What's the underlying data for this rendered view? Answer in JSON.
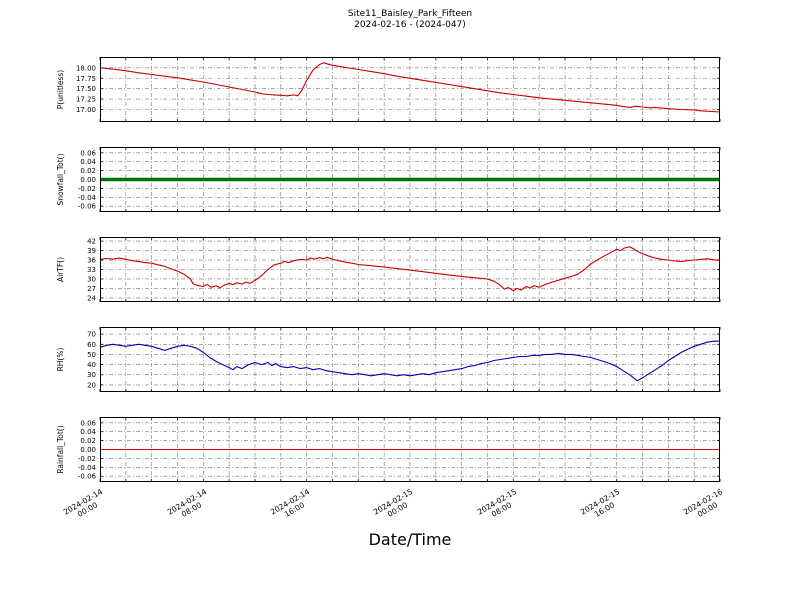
{
  "chart_data": {
    "type": "line",
    "title": "Site11_Baisley_Park_Fifteen",
    "subtitle": "2024-02-16 - (2024-047)",
    "xlabel": "Date/Time",
    "grid": true,
    "x_unit": "hours since 2024-02-14 00:00",
    "xlim": [
      0,
      48
    ],
    "x_minor_grid_step_hours": 2,
    "x_major_tick_hours": [
      0,
      8,
      16,
      24,
      32,
      40,
      48
    ],
    "x_major_tick_labels": [
      [
        "2024-02-14",
        "00:00"
      ],
      [
        "2024-02-14",
        "08:00"
      ],
      [
        "2024-02-14",
        "16:00"
      ],
      [
        "2024-02-15",
        "00:00"
      ],
      [
        "2024-02-15",
        "08:00"
      ],
      [
        "2024-02-15",
        "16:00"
      ],
      [
        "2024-02-16",
        "00:00"
      ]
    ],
    "panels": [
      {
        "id": "p-unitless",
        "ylabel": "P(unitless)",
        "color": "#cc0000",
        "line_width": 1.1,
        "ylim": [
          16.7,
          18.26
        ],
        "yticks": [
          17.0,
          17.25,
          17.5,
          17.75,
          18.0
        ],
        "ytick_labels": [
          "17.00",
          "17.25",
          "17.50",
          "17.75",
          "18.00"
        ],
        "x": [
          0,
          1,
          2,
          3,
          4,
          5,
          6,
          7,
          8,
          9,
          10,
          11,
          12,
          12.5,
          13,
          13.5,
          14,
          14.5,
          15,
          15.3,
          15.6,
          16,
          16.5,
          17,
          17.3,
          18,
          19,
          20,
          21,
          22,
          23,
          24,
          25,
          26,
          27,
          28,
          29,
          30,
          31,
          32,
          33,
          34,
          35,
          36,
          37,
          38,
          39,
          40,
          40.5,
          41,
          41.5,
          42,
          42.5,
          43,
          44,
          45,
          46,
          46.5,
          47,
          48
        ],
        "y": [
          18.0,
          17.97,
          17.93,
          17.88,
          17.84,
          17.8,
          17.76,
          17.71,
          17.66,
          17.6,
          17.54,
          17.48,
          17.42,
          17.38,
          17.36,
          17.35,
          17.34,
          17.33,
          17.35,
          17.33,
          17.45,
          17.7,
          17.95,
          18.08,
          18.12,
          18.06,
          18.01,
          17.96,
          17.91,
          17.86,
          17.8,
          17.75,
          17.7,
          17.65,
          17.6,
          17.55,
          17.5,
          17.45,
          17.4,
          17.36,
          17.32,
          17.28,
          17.25,
          17.22,
          17.19,
          17.16,
          17.13,
          17.1,
          17.07,
          17.05,
          17.08,
          17.06,
          17.04,
          17.05,
          17.02,
          17.0,
          16.99,
          16.97,
          16.96,
          16.94
        ]
      },
      {
        "id": "snowfall-tot",
        "ylabel": "Snowfall_Tot()",
        "color": "#007700",
        "line_width": 3.5,
        "ylim": [
          -0.073,
          0.073
        ],
        "yticks": [
          0.06,
          0.04,
          0.02,
          0.0,
          -0.02,
          -0.04,
          -0.06
        ],
        "ytick_labels": [
          "0.06",
          "0.04",
          "0.02",
          "0.00",
          "-0.02",
          "-0.04",
          "-0.06"
        ],
        "x": [
          0,
          48
        ],
        "y": [
          0,
          0
        ]
      },
      {
        "id": "airtf",
        "ylabel": "AirTF()",
        "color": "#cc0000",
        "line_width": 1.1,
        "ylim": [
          22.7,
          43.3
        ],
        "yticks": [
          42,
          39,
          36,
          33,
          30,
          27,
          24
        ],
        "ytick_labels": [
          "42",
          "39",
          "36",
          "33",
          "30",
          "27",
          "24"
        ],
        "x": [
          0,
          0.5,
          1,
          1.5,
          2,
          2.5,
          3,
          3.5,
          4,
          4.5,
          5,
          5.5,
          6,
          6.5,
          7,
          7.2,
          7.5,
          8,
          8.3,
          8.6,
          9,
          9.3,
          9.6,
          10,
          10.3,
          10.6,
          11,
          11.3,
          11.6,
          12,
          12.5,
          13,
          13.5,
          14,
          14.3,
          14.6,
          15,
          15.5,
          16,
          16.3,
          16.6,
          17,
          17.3,
          17.6,
          18,
          18.5,
          19,
          19.5,
          20,
          21,
          22,
          23,
          24,
          25,
          26,
          27,
          28,
          29,
          30,
          30.5,
          31,
          31.3,
          31.6,
          32,
          32.3,
          32.6,
          33,
          33.3,
          33.6,
          34,
          34.5,
          35,
          35.5,
          36,
          36.5,
          37,
          37.5,
          38,
          38.5,
          39,
          39.5,
          40,
          40.3,
          40.6,
          41,
          41.3,
          41.6,
          42,
          42.5,
          43,
          43.5,
          44,
          44.5,
          45,
          45.5,
          46,
          46.5,
          47,
          47.5,
          48
        ],
        "y": [
          36.2,
          36.5,
          36.3,
          36.6,
          36.2,
          35.8,
          35.5,
          35.2,
          35.0,
          34.5,
          34.0,
          33.2,
          32.5,
          31.5,
          30.0,
          28.5,
          28.0,
          27.6,
          28.3,
          27.4,
          27.8,
          27.2,
          28.0,
          28.6,
          28.2,
          28.8,
          28.4,
          29.0,
          28.6,
          29.5,
          31.0,
          33.0,
          34.5,
          35.0,
          35.6,
          35.2,
          35.8,
          36.2,
          36.0,
          36.6,
          36.3,
          36.8,
          36.4,
          36.9,
          36.2,
          35.8,
          35.3,
          35.0,
          34.6,
          34.2,
          33.8,
          33.3,
          32.8,
          32.3,
          31.8,
          31.3,
          30.8,
          30.4,
          30.0,
          29.3,
          28.0,
          26.8,
          27.3,
          26.3,
          27.0,
          26.5,
          27.6,
          27.1,
          27.9,
          27.4,
          28.3,
          29.0,
          29.6,
          30.2,
          30.8,
          31.5,
          33.0,
          34.8,
          36.0,
          37.2,
          38.3,
          39.4,
          39.0,
          39.8,
          40.2,
          39.6,
          38.8,
          38.0,
          37.2,
          36.6,
          36.2,
          36.0,
          35.7,
          35.5,
          35.8,
          36.0,
          36.2,
          36.4,
          36.1,
          35.8
        ]
      },
      {
        "id": "rh",
        "ylabel": "RH(%)",
        "color": "#0000bb",
        "line_width": 1.1,
        "ylim": [
          13,
          77
        ],
        "yticks": [
          70,
          60,
          50,
          40,
          30,
          20
        ],
        "ytick_labels": [
          "70",
          "60",
          "50",
          "40",
          "30",
          "20"
        ],
        "x": [
          0,
          0.5,
          1,
          1.5,
          2,
          2.5,
          3,
          3.5,
          4,
          4.5,
          5,
          5.5,
          6,
          6.5,
          7,
          7.5,
          8,
          8.5,
          9,
          9.5,
          10,
          10.3,
          10.6,
          11,
          11.5,
          12,
          12.5,
          13,
          13.3,
          13.6,
          14,
          14.5,
          15,
          15.5,
          16,
          16.5,
          17,
          17.5,
          18,
          18.5,
          19,
          19.5,
          20,
          20.5,
          21,
          21.5,
          22,
          22.5,
          23,
          23.5,
          24,
          24.5,
          25,
          25.5,
          26,
          26.5,
          27,
          27.5,
          28,
          28.5,
          29,
          29.5,
          30,
          30.5,
          31,
          31.5,
          32,
          32.5,
          33,
          33.5,
          34,
          34.5,
          35,
          35.5,
          36,
          36.5,
          37,
          37.5,
          38,
          38.5,
          39,
          39.5,
          40,
          40.5,
          41,
          41.3,
          41.6,
          42,
          42.5,
          43,
          43.5,
          44,
          44.5,
          45,
          45.5,
          46,
          46.5,
          47,
          47.5,
          48
        ],
        "y": [
          57,
          59,
          60,
          59,
          58,
          59,
          60,
          59,
          58,
          56,
          54,
          56,
          58,
          59,
          58,
          56,
          52,
          47,
          43,
          40,
          37,
          35,
          38,
          36,
          40,
          42,
          40,
          42,
          39,
          41,
          38,
          37,
          38,
          36,
          37,
          35,
          36,
          34,
          33,
          32,
          31,
          30,
          31,
          30,
          29,
          30,
          31,
          30,
          29,
          30,
          29,
          30,
          31,
          30,
          32,
          33,
          34,
          35,
          36,
          38,
          39,
          41,
          42,
          44,
          45,
          46,
          47,
          48,
          48,
          49,
          49,
          50,
          50,
          51,
          50,
          50,
          49,
          48,
          47,
          45,
          43,
          41,
          38,
          34,
          30,
          27,
          24,
          27,
          31,
          35,
          39,
          44,
          48,
          52,
          55,
          58,
          60,
          62,
          63,
          63
        ]
      },
      {
        "id": "rainfall-tot",
        "ylabel": "Rainfall_Tot()",
        "color": "#dd0000",
        "line_width": 1.0,
        "ylim": [
          -0.073,
          0.073
        ],
        "yticks": [
          0.06,
          0.04,
          0.02,
          0.0,
          -0.02,
          -0.04,
          -0.06
        ],
        "ytick_labels": [
          "0.06",
          "0.04",
          "0.02",
          "0.00",
          "-0.02",
          "-0.04",
          "-0.06"
        ],
        "x": [
          0,
          48
        ],
        "y": [
          0,
          0
        ]
      }
    ]
  }
}
